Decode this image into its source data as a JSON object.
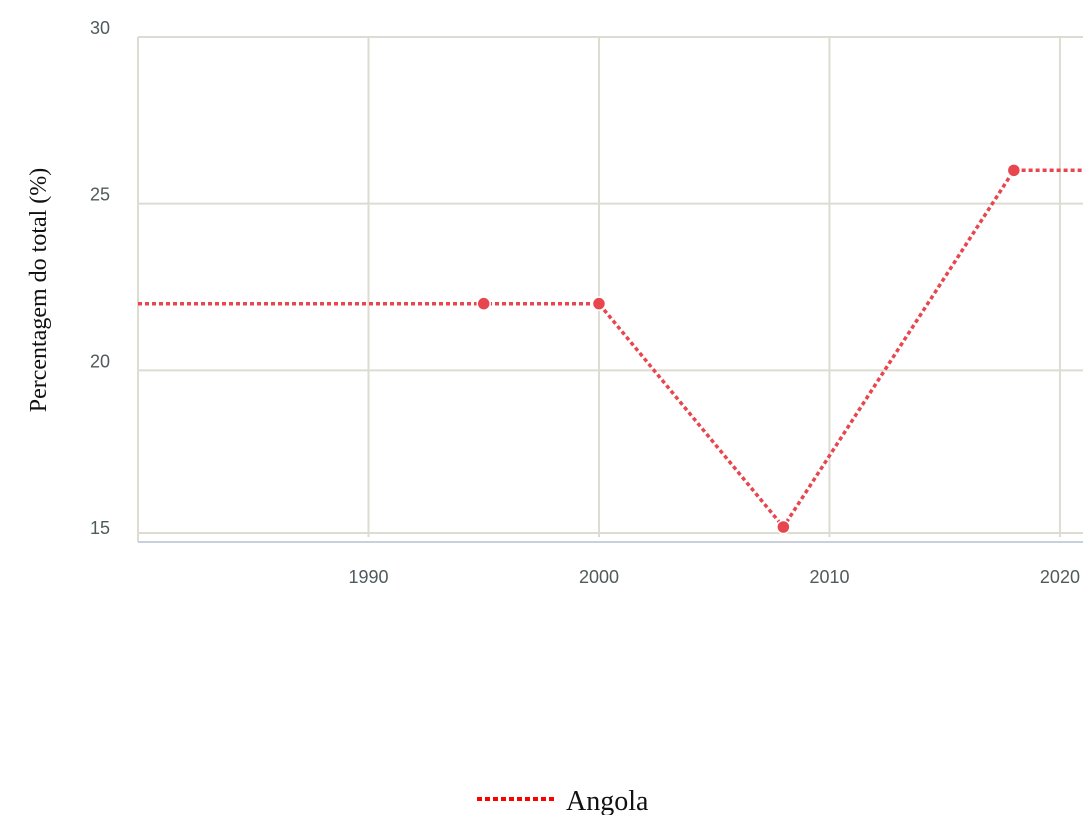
{
  "chart_data": {
    "type": "line",
    "title": "",
    "xlabel": "",
    "ylabel": "Percentagem do total (%)",
    "xlim": [
      1980,
      2021
    ],
    "ylim": [
      15,
      30
    ],
    "x_ticks": [
      1990,
      2000,
      2010,
      2020
    ],
    "y_ticks": [
      15,
      20,
      25,
      30
    ],
    "grid": true,
    "legend_position": "bottom-center",
    "series": [
      {
        "name": "Angola",
        "color": "#e8464f",
        "line_style": "dotted",
        "points": [
          {
            "x": 1980,
            "y": 22.0,
            "marker": false
          },
          {
            "x": 1995,
            "y": 22.0,
            "marker": true
          },
          {
            "x": 2000,
            "y": 22.0,
            "marker": true
          },
          {
            "x": 2008,
            "y": 15.3,
            "marker": true
          },
          {
            "x": 2018,
            "y": 26.0,
            "marker": true
          },
          {
            "x": 2021,
            "y": 26.0,
            "marker": false
          }
        ]
      }
    ],
    "colors": {
      "grid": "#dcdcd2",
      "axis": "#c8d0dc",
      "tick_text": "#4f5b5b"
    }
  }
}
